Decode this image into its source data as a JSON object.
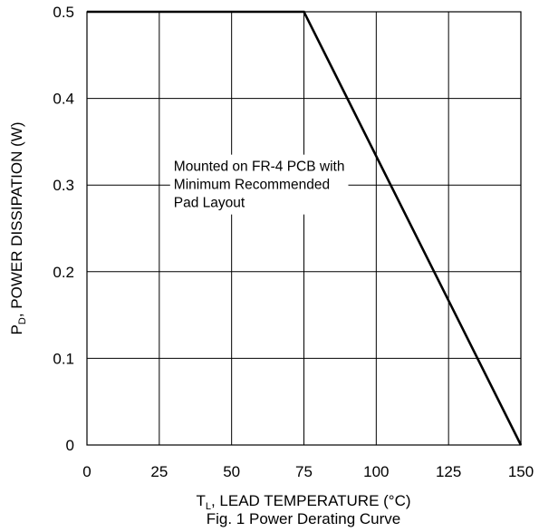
{
  "chart_data": {
    "type": "line",
    "xlabel_main": "T",
    "xlabel_sub": "L",
    "xlabel_rest": ", LEAD TEMPERATURE (°C)",
    "ylabel_main": "P",
    "ylabel_sub": "D",
    "ylabel_rest": ", POWER DISSIPATION (W)",
    "caption": "Fig. 1 Power Derating Curve",
    "annotation": [
      "Mounted on FR-4 PCB with",
      "Minimum Recommended",
      "Pad Layout"
    ],
    "annotation_at": {
      "x": 30,
      "y": 0.31
    },
    "xlim": [
      0,
      150
    ],
    "ylim": [
      0,
      0.5
    ],
    "x_ticks": [
      0,
      25,
      50,
      75,
      100,
      125,
      150
    ],
    "x_tick_labels": [
      "0",
      "25",
      "50",
      "75",
      "100",
      "125",
      "150"
    ],
    "y_ticks": [
      0,
      0.1,
      0.2,
      0.3,
      0.4,
      0.5
    ],
    "y_tick_labels": [
      "0",
      "0.1",
      "0.2",
      "0.3",
      "0.4",
      "0.5"
    ],
    "grid": true,
    "series": [
      {
        "x": [
          0,
          75,
          150
        ],
        "y": [
          0.5,
          0.5,
          0
        ],
        "color": "#000000"
      }
    ]
  }
}
